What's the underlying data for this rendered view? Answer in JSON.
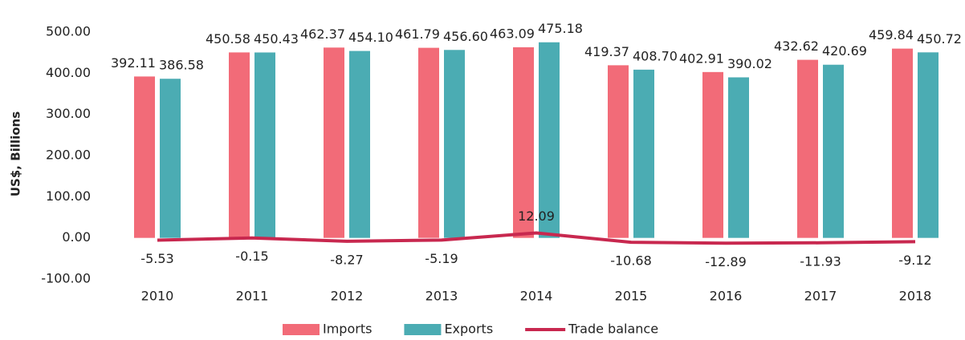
{
  "chart_data": {
    "type": "bar-line",
    "y_label": "US$, Billions",
    "categories": [
      "2010",
      "2011",
      "2012",
      "2013",
      "2014",
      "2015",
      "2016",
      "2017",
      "2018"
    ],
    "series": [
      {
        "name": "Imports",
        "type": "bar",
        "color": "#f26b78",
        "values": [
          392.11,
          450.58,
          462.37,
          461.79,
          463.09,
          419.37,
          402.91,
          432.62,
          459.84
        ],
        "value_labels": [
          "392.11",
          "450.58",
          "462.37",
          "461.79",
          "463.09",
          "419.37",
          "402.91",
          "432.62",
          "459.84"
        ]
      },
      {
        "name": "Exports",
        "type": "bar",
        "color": "#4bacb3",
        "values": [
          386.58,
          450.43,
          454.1,
          456.6,
          475.18,
          408.7,
          390.02,
          420.69,
          450.72
        ],
        "value_labels": [
          "386.58",
          "450.43",
          "454.10",
          "456.60",
          "475.18",
          "408.70",
          "390.02",
          "420.69",
          "450.72"
        ]
      },
      {
        "name": "Trade balance",
        "type": "line",
        "color": "#c8284f",
        "values": [
          -5.53,
          -0.15,
          -8.27,
          -5.19,
          12.09,
          -10.68,
          -12.89,
          -11.93,
          -9.12
        ],
        "value_labels": [
          "-5.53",
          "-0.15",
          "-8.27",
          "-5.19",
          "12.09",
          "-10.68",
          "-12.89",
          "-11.93",
          "-9.12"
        ]
      }
    ],
    "ylim": [
      -100,
      500
    ],
    "yticks": [
      {
        "value": -100,
        "label": "-100.00"
      },
      {
        "value": 0,
        "label": "0.00"
      },
      {
        "value": 100,
        "label": "100.00"
      },
      {
        "value": 200,
        "label": "200.00"
      },
      {
        "value": 300,
        "label": "300.00"
      },
      {
        "value": 400,
        "label": "400.00"
      },
      {
        "value": 500,
        "label": "500.00"
      }
    ],
    "legend": "bottom"
  }
}
